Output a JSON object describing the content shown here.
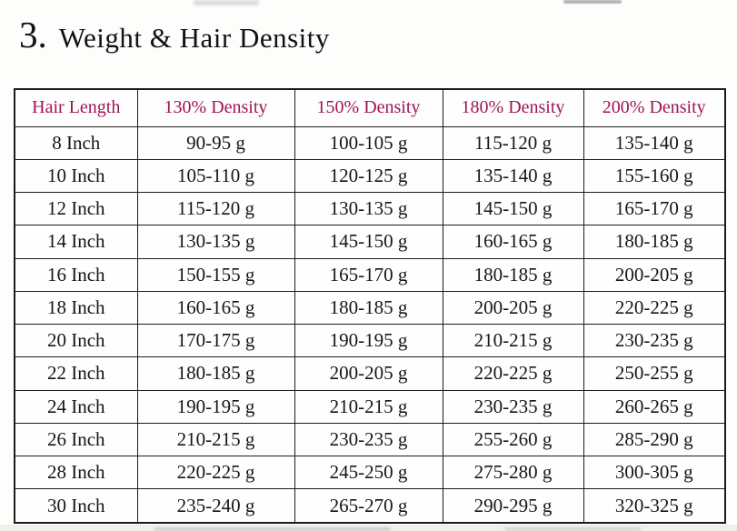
{
  "page": {
    "section_number": "3.",
    "title": "Weight & Hair Density"
  },
  "table": {
    "columns": [
      "Hair Length",
      "130% Density",
      "150% Density",
      "180% Density",
      "200% Density"
    ],
    "rows": [
      [
        "8 Inch",
        "90-95 g",
        "100-105 g",
        "115-120 g",
        "135-140 g"
      ],
      [
        "10 Inch",
        "105-110 g",
        "120-125 g",
        "135-140 g",
        "155-160 g"
      ],
      [
        "12 Inch",
        "115-120 g",
        "130-135 g",
        "145-150 g",
        "165-170 g"
      ],
      [
        "14 Inch",
        "130-135 g",
        "145-150 g",
        "160-165 g",
        "180-185 g"
      ],
      [
        "16 Inch",
        "150-155 g",
        "165-170 g",
        "180-185 g",
        "200-205 g"
      ],
      [
        "18 Inch",
        "160-165 g",
        "180-185 g",
        "200-205 g",
        "220-225 g"
      ],
      [
        "20 Inch",
        "170-175 g",
        "190-195 g",
        "210-215 g",
        "230-235 g"
      ],
      [
        "22 Inch",
        "180-185 g",
        "200-205 g",
        "220-225 g",
        "250-255 g"
      ],
      [
        "24 Inch",
        "190-195 g",
        "210-215 g",
        "230-235 g",
        "260-265 g"
      ],
      [
        "26 Inch",
        "210-215 g",
        "230-235 g",
        "255-260 g",
        "285-290 g"
      ],
      [
        "28 Inch",
        "220-225 g",
        "245-250 g",
        "275-280 g",
        "300-305 g"
      ],
      [
        "30 Inch",
        "235-240 g",
        "265-270 g",
        "290-295 g",
        "320-325 g"
      ]
    ]
  },
  "colors": {
    "header_text": "#a11453",
    "body_text": "#161616",
    "border": "#1b1b1b",
    "page_background": "#fdfdfc",
    "footer_strip": "#f0efec"
  }
}
